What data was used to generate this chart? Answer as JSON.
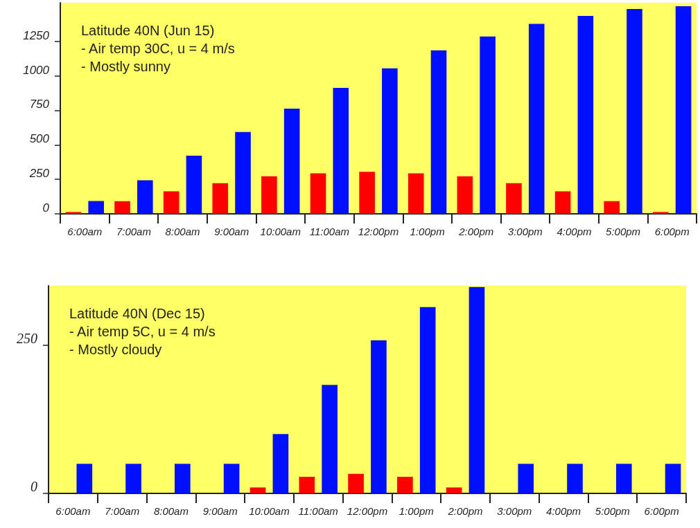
{
  "chart_data": [
    {
      "type": "bar",
      "categories": [
        "6:00am",
        "7:00am",
        "8:00am",
        "9:00am",
        "10:00am",
        "11:00am",
        "12:00pm",
        "1:00pm",
        "2:00pm",
        "3:00pm",
        "4:00pm",
        "5:00pm",
        "6:00pm"
      ],
      "series": [
        {
          "color": "#ff0000",
          "values": [
            13,
            92,
            163,
            222,
            272,
            293,
            305,
            293,
            272,
            222,
            163,
            92,
            13
          ]
        },
        {
          "color": "#0010ff",
          "values": [
            93,
            243,
            421,
            593,
            763,
            913,
            1055,
            1185,
            1285,
            1377,
            1435,
            1485,
            1505
          ]
        }
      ],
      "ylim": [
        0,
        1530
      ],
      "yticks": [
        0,
        250,
        500,
        750,
        1000,
        1250
      ],
      "grid": false,
      "annotations": [
        "Latitude 40N (Jun 15)",
        "- Air temp 30C, u = 4 m/s",
        "- Mostly sunny"
      ]
    },
    {
      "type": "bar",
      "categories": [
        "6:00am",
        "7:00am",
        "8:00am",
        "9:00am",
        "10:00am",
        "11:00am",
        "12:00pm",
        "1:00pm",
        "2:00pm",
        "3:00pm",
        "4:00pm",
        "5:00pm",
        "6:00pm"
      ],
      "series": [
        {
          "color": "#ff0000",
          "values": [
            null,
            null,
            null,
            null,
            10,
            28,
            33,
            28,
            10,
            null,
            null,
            null,
            null
          ]
        },
        {
          "color": "#0010ff",
          "values": [
            50,
            50,
            50,
            50,
            100,
            183,
            258,
            314,
            348,
            50,
            50,
            50,
            50
          ]
        }
      ],
      "ylim": [
        0,
        350
      ],
      "yticks": [
        0,
        250
      ],
      "grid": false,
      "annotations": [
        "Latitude 40N (Dec 15)",
        "- Air temp 5C, u = 4 m/s",
        "- Mostly cloudy"
      ]
    }
  ]
}
